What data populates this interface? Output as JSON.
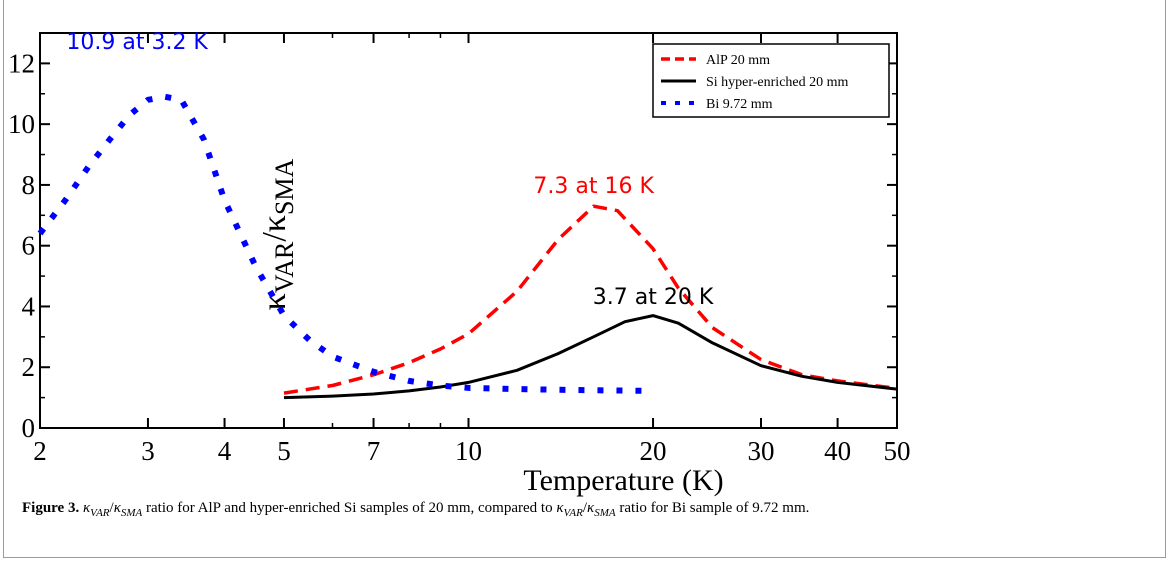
{
  "figure": {
    "label": "Figure 3.",
    "caption_parts": [
      {
        "t": "κ",
        "i": true
      },
      {
        "t": "VAR",
        "i": true,
        "sub": true
      },
      {
        "t": "/",
        "i": false
      },
      {
        "t": "κ",
        "i": true
      },
      {
        "t": "SMA",
        "i": true,
        "sub": true
      },
      {
        "t": " ratio for AlP and hyper-enriched Si samples of 20 mm, compared to ",
        "i": false
      },
      {
        "t": "κ",
        "i": true
      },
      {
        "t": "VAR",
        "i": true,
        "sub": true
      },
      {
        "t": "/",
        "i": false
      },
      {
        "t": "κ",
        "i": true
      },
      {
        "t": "SMA",
        "i": true,
        "sub": true
      },
      {
        "t": " ratio for Bi sample of 9.72 mm.",
        "i": false
      }
    ]
  },
  "chart_data": {
    "type": "line",
    "xscale": "log",
    "xlabel": "Temperature (K)",
    "ylabel": {
      "base1": "κ",
      "sub1": "VAR",
      "slash": "/",
      "base2": "κ",
      "sub2": "SMA"
    },
    "xlim": [
      2,
      50
    ],
    "ylim": [
      0,
      13
    ],
    "xticks": [
      2,
      3,
      4,
      5,
      7,
      10,
      20,
      30,
      40,
      50
    ],
    "xtick_labels": [
      "2",
      "3",
      "4",
      "5",
      "7",
      "10",
      "20",
      "30",
      "40",
      "50"
    ],
    "yticks": [
      0,
      2,
      4,
      6,
      8,
      10,
      12
    ],
    "ytick_labels": [
      "0",
      "2",
      "4",
      "6",
      "8",
      "10",
      "12"
    ],
    "legend_position": "top-right",
    "series": [
      {
        "name": "AlP 20 mm",
        "color": "#ff0000",
        "style": "dashed",
        "x": [
          5,
          6,
          7,
          8,
          9,
          10,
          12,
          14,
          16,
          17.5,
          20,
          22,
          25,
          30,
          35,
          40,
          50
        ],
        "y": [
          1.15,
          1.4,
          1.75,
          2.15,
          2.6,
          3.1,
          4.5,
          6.2,
          7.3,
          7.15,
          5.9,
          4.6,
          3.3,
          2.25,
          1.75,
          1.55,
          1.3
        ]
      },
      {
        "name": "Si hyper-enriched 20 mm",
        "color": "#000000",
        "style": "solid",
        "x": [
          5,
          6,
          7,
          8,
          9,
          10,
          12,
          14,
          16,
          18,
          20,
          22,
          25,
          30,
          35,
          40,
          50
        ],
        "y": [
          1.0,
          1.05,
          1.12,
          1.22,
          1.35,
          1.5,
          1.9,
          2.45,
          3.0,
          3.5,
          3.7,
          3.45,
          2.8,
          2.05,
          1.7,
          1.5,
          1.28
        ]
      },
      {
        "name": "Bi 9.72 mm",
        "color": "#0000ff",
        "style": "dotted",
        "x": [
          2,
          2.2,
          2.4,
          2.6,
          2.8,
          3.0,
          3.2,
          3.4,
          3.7,
          4.0,
          4.5,
          5,
          5.5,
          6.0,
          7.0,
          8.0,
          9.0,
          10,
          12,
          15,
          20
        ],
        "y": [
          6.4,
          7.5,
          8.6,
          9.5,
          10.3,
          10.8,
          10.9,
          10.8,
          9.5,
          7.5,
          5.3,
          3.7,
          2.9,
          2.35,
          1.85,
          1.55,
          1.4,
          1.32,
          1.28,
          1.25,
          1.22
        ]
      }
    ],
    "annotations": [
      {
        "text": "10.9 at 3.2 K",
        "color": "#0000ff",
        "x": 3.2,
        "y": 10.9
      },
      {
        "text": "7.3 at 16 K",
        "color": "#ff0000",
        "x": 16,
        "y": 7.3
      },
      {
        "text": "3.7 at 20 K",
        "color": "#000000",
        "x": 20,
        "y": 3.7
      }
    ]
  }
}
